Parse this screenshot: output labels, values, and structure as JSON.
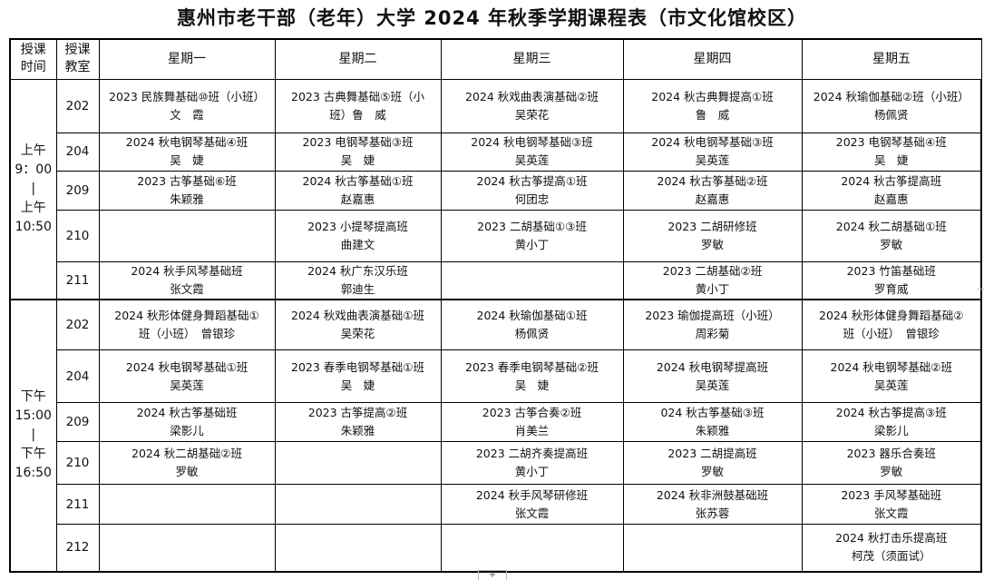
{
  "title": "惠州市老干部（老年）大学 2024 年秋季学期课程表（市文化馆校区）",
  "header": {
    "time": [
      "授课",
      "时间"
    ],
    "room": [
      "授课",
      "教室"
    ],
    "days": [
      "星期一",
      "星期二",
      "星期三",
      "星期四",
      "星期五"
    ]
  },
  "sessions": [
    {
      "time": [
        "上午",
        "9：00",
        "|",
        "上午",
        "10:50"
      ],
      "rows": [
        {
          "room": "202",
          "cells": [
            [
              "2023 民族舞基础⑩班（小班）",
              "文　霞"
            ],
            [
              "2023 古典舞基础⑤班（小",
              "班）鲁　威"
            ],
            [
              "2024 秋戏曲表演基础②班",
              "吴荣花"
            ],
            [
              "2024 秋古典舞提高①班",
              "鲁　威"
            ],
            [
              "2024 秋瑜伽基础②班（小班）",
              "杨佩贤"
            ]
          ]
        },
        {
          "room": "204",
          "cells": [
            [
              "2024 秋电钢琴基础④班",
              "吴　婕"
            ],
            [
              "2023  电钢琴基础③班",
              "吴　婕"
            ],
            [
              "2024 秋电钢琴基础③班",
              "吴英莲"
            ],
            [
              "2024 秋电钢琴基础③班",
              "吴英莲"
            ],
            [
              "2023  电钢琴基础④班",
              "吴　婕"
            ]
          ]
        },
        {
          "room": "209",
          "cells": [
            [
              "2023 古筝基础⑥班",
              "朱颖雅"
            ],
            [
              "2024 秋古筝基础①班",
              "赵嘉惠"
            ],
            [
              "2024 秋古筝提高①班",
              "何团忠"
            ],
            [
              "2024 秋古筝基础②班",
              "赵嘉惠"
            ],
            [
              "2024 秋古筝提高班",
              "赵嘉惠"
            ]
          ]
        },
        {
          "room": "210",
          "cells": [
            [
              "",
              ""
            ],
            [
              "2023  小提琴提高班",
              "曲建文"
            ],
            [
              "2023  二胡基础①③班",
              "黄小丁"
            ],
            [
              "2023  二胡研修班",
              "罗敏"
            ],
            [
              "2024 秋二胡基础①班",
              "罗敏"
            ]
          ]
        },
        {
          "room": "211",
          "cells": [
            [
              "2024 秋手风琴基础班",
              "张文霞"
            ],
            [
              "2024 秋广东汉乐班",
              "郭迪生"
            ],
            [
              "",
              ""
            ],
            [
              "2023  二胡基础②班",
              "黄小丁"
            ],
            [
              "2023  竹笛基础班",
              "罗育威"
            ]
          ]
        }
      ]
    },
    {
      "time": [
        "下午",
        "15:00",
        "|",
        "下午",
        "16:50"
      ],
      "rows": [
        {
          "room": "202",
          "cells": [
            [
              "2024 秋形体健身舞蹈基础①",
              "班（小班）　曾银珍"
            ],
            [
              "2024 秋戏曲表演基础①班",
              "吴荣花"
            ],
            [
              "2024 秋瑜伽基础①班",
              "杨佩贤"
            ],
            [
              "2023  瑜伽提高班（小班）",
              "周彩菊"
            ],
            [
              "2024 秋形体健身舞蹈基础②",
              "班（小班）　曾银珍"
            ]
          ]
        },
        {
          "room": "204",
          "cells": [
            [
              "2024 秋电钢琴基础①班",
              "吴英莲"
            ],
            [
              "2023  春季电钢琴基础①班",
              "吴　婕"
            ],
            [
              "2023  春季电钢琴基础②班",
              "吴　婕"
            ],
            [
              "2024 秋电钢琴提高班",
              "吴英莲"
            ],
            [
              "2024 秋电钢琴基础②班",
              "吴英莲"
            ]
          ]
        },
        {
          "room": "209",
          "cells": [
            [
              "2024 秋古筝基础班",
              "梁影儿"
            ],
            [
              "2023  古筝提高②班",
              "朱颖雅"
            ],
            [
              "2023  古筝合奏②班",
              "肖美兰"
            ],
            [
              "024 秋古筝基础③班",
              "朱颖雅"
            ],
            [
              "2024 秋古筝提高③班",
              "梁影儿"
            ]
          ]
        },
        {
          "room": "210",
          "cells": [
            [
              "2024 秋二胡基础②班",
              "罗敏"
            ],
            [
              "",
              ""
            ],
            [
              "2023 二胡齐奏提高班",
              "黄小丁"
            ],
            [
              "2023  二胡提高班",
              "罗敏"
            ],
            [
              "2023  器乐合奏班",
              "罗敏"
            ]
          ]
        },
        {
          "room": "211",
          "cells": [
            [
              "",
              ""
            ],
            [
              "",
              ""
            ],
            [
              "2024 秋手风琴研修班",
              "张文霞"
            ],
            [
              "2024 秋非洲鼓基础班",
              "张苏蓉"
            ],
            [
              "2023  手风琴基础班",
              "张文霞"
            ]
          ]
        },
        {
          "room": "212",
          "cells": [
            [
              "",
              ""
            ],
            [
              "",
              ""
            ],
            [
              "",
              ""
            ],
            [
              "",
              ""
            ],
            [
              "2024 秋打击乐提高班",
              "柯茂（须面试）"
            ]
          ]
        }
      ]
    }
  ]
}
